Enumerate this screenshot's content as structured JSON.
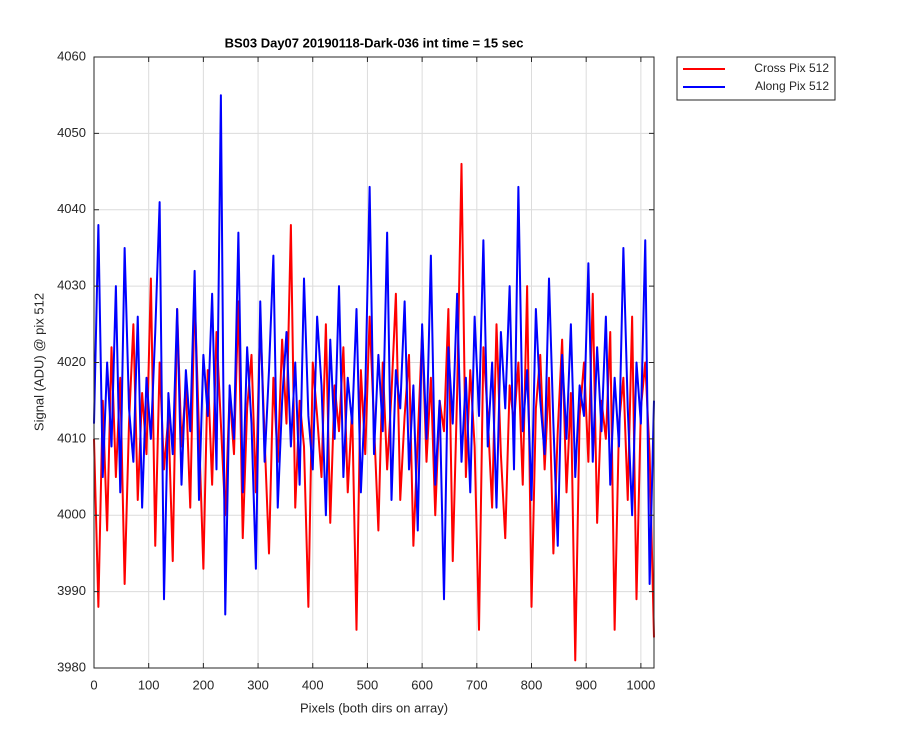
{
  "chart_data": {
    "type": "line",
    "title": "BS03 Day07 20190118-Dark-036 int time = 15 sec",
    "xlabel": "Pixels (both dirs on array)",
    "ylabel": "Signal (ADU) @ pix 512",
    "x": [
      0,
      8,
      16,
      24,
      32,
      40,
      48,
      56,
      64,
      72,
      80,
      88,
      96,
      104,
      112,
      120,
      128,
      136,
      144,
      152,
      160,
      168,
      176,
      184,
      192,
      200,
      208,
      216,
      224,
      232,
      240,
      248,
      256,
      264,
      272,
      280,
      288,
      296,
      304,
      312,
      320,
      328,
      336,
      344,
      352,
      360,
      368,
      376,
      384,
      392,
      400,
      408,
      416,
      424,
      432,
      440,
      448,
      456,
      464,
      472,
      480,
      488,
      496,
      504,
      512,
      520,
      528,
      536,
      544,
      552,
      560,
      568,
      576,
      584,
      592,
      600,
      608,
      616,
      624,
      632,
      640,
      648,
      656,
      664,
      672,
      680,
      688,
      696,
      704,
      712,
      720,
      728,
      736,
      744,
      752,
      760,
      768,
      776,
      784,
      792,
      800,
      808,
      816,
      824,
      832,
      840,
      848,
      856,
      864,
      872,
      880,
      888,
      896,
      904,
      912,
      920,
      928,
      936,
      944,
      952,
      960,
      968,
      976,
      984,
      992,
      1000,
      1008,
      1016,
      1024
    ],
    "series": [
      {
        "name": "Cross Pix 512",
        "color": "#ff0000",
        "values": [
          4010,
          3988,
          4015,
          3998,
          4022,
          4005,
          4018,
          3991,
          4012,
          4025,
          4002,
          4016,
          4008,
          4031,
          3996,
          4020,
          4006,
          4013,
          3994,
          4027,
          4009,
          4017,
          4001,
          4029,
          4011,
          3993,
          4019,
          4004,
          4024,
          4012,
          4000,
          4016,
          4008,
          4028,
          3997,
          4014,
          4021,
          4003,
          4026,
          4010,
          3995,
          4018,
          4007,
          4023,
          4012,
          4038,
          4001,
          4015,
          4009,
          3988,
          4020,
          4013,
          4005,
          4025,
          3999,
          4017,
          4011,
          4022,
          4003,
          4014,
          3985,
          4019,
          4008,
          4026,
          4012,
          3998,
          4020,
          4006,
          4016,
          4029,
          4002,
          4013,
          4021,
          3996,
          4010,
          4024,
          4007,
          4018,
          4000,
          4015,
          4011,
          4027,
          3994,
          4016,
          4046,
          4005,
          4019,
          4009,
          3985,
          4022,
          4013,
          4001,
          4025,
          4008,
          3997,
          4017,
          4012,
          4020,
          4004,
          4030,
          3988,
          4014,
          4021,
          4006,
          4018,
          3995,
          4011,
          4023,
          4003,
          4016,
          3981,
          4013,
          4020,
          4007,
          4029,
          3999,
          4015,
          4010,
          4024,
          3985,
          4012,
          4018,
          4002,
          4026,
          3989,
          4014,
          4020,
          4008,
          3984
        ]
      },
      {
        "name": "Along Pix 512",
        "color": "#0000ff",
        "values": [
          4012,
          4038,
          4005,
          4020,
          4009,
          4030,
          4003,
          4035,
          4014,
          4007,
          4026,
          4001,
          4018,
          4010,
          4024,
          4041,
          3989,
          4016,
          4008,
          4027,
          4004,
          4019,
          4011,
          4032,
          4002,
          4021,
          4013,
          4029,
          4006,
          4055,
          3987,
          4017,
          4010,
          4037,
          4003,
          4022,
          4012,
          3993,
          4028,
          4007,
          4019,
          4034,
          4001,
          4015,
          4024,
          4009,
          4020,
          4004,
          4031,
          4013,
          4006,
          4026,
          4017,
          4000,
          4023,
          4010,
          4030,
          4005,
          4018,
          4012,
          4027,
          4003,
          4016,
          4043,
          4008,
          4021,
          4011,
          4037,
          4002,
          4019,
          4014,
          4028,
          4006,
          4017,
          3998,
          4025,
          4010,
          4034,
          4004,
          4015,
          3989,
          4022,
          4012,
          4029,
          4007,
          4018,
          4003,
          4026,
          4013,
          4036,
          4009,
          4020,
          4001,
          4024,
          4014,
          4030,
          4006,
          4043,
          4011,
          4019,
          4002,
          4027,
          4015,
          4008,
          4031,
          4012,
          3996,
          4021,
          4010,
          4025,
          4005,
          4017,
          4013,
          4033,
          4007,
          4022,
          4011,
          4026,
          4004,
          4018,
          4009,
          4035,
          4014,
          4000,
          4020,
          4012,
          4036,
          3991,
          4015
        ]
      }
    ],
    "xlim": [
      0,
      1024
    ],
    "xticks": [
      0,
      100,
      200,
      300,
      400,
      500,
      600,
      700,
      800,
      900,
      1000
    ],
    "ylim": [
      3980,
      4060
    ],
    "yticks": [
      3980,
      3990,
      4000,
      4010,
      4020,
      4030,
      4040,
      4050,
      4060
    ],
    "grid": true,
    "legend": "outside-top-right"
  }
}
